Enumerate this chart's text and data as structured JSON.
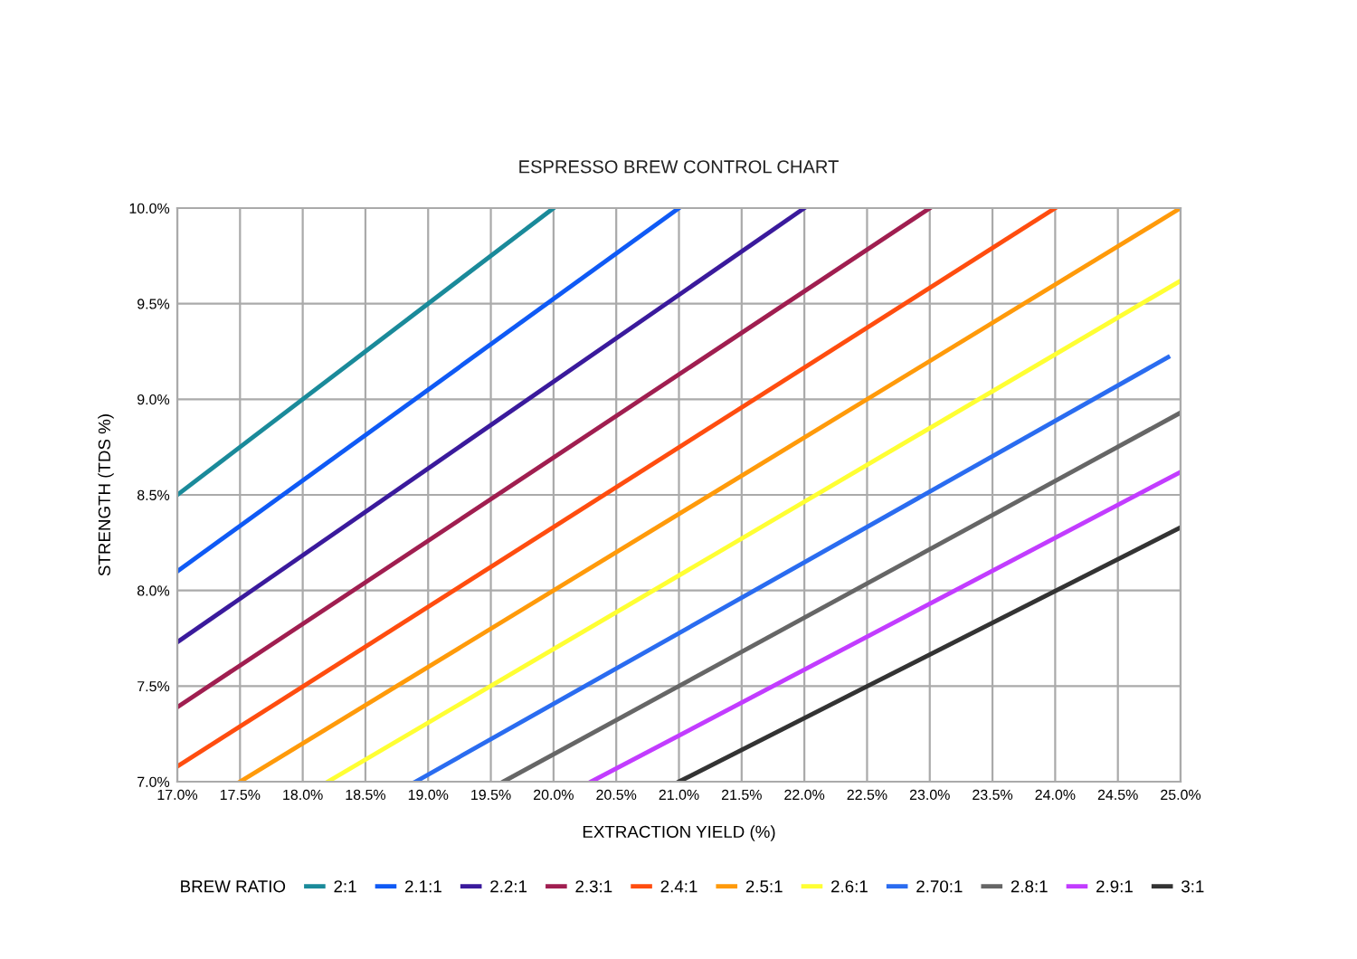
{
  "chart_data": {
    "type": "line",
    "title": "ESPRESSO BREW CONTROL CHART",
    "xlabel": "EXTRACTION YIELD (%)",
    "ylabel": "STRENGTH (TDS %)",
    "legend_title": "BREW RATIO",
    "legend": "bottom",
    "grid": true,
    "marker": "none",
    "line_style": "solid",
    "xlim": [
      17.0,
      25.0
    ],
    "ylim": [
      7.0,
      10.0
    ],
    "xticks": [
      {
        "value": 17.0,
        "label": "17.0%"
      },
      {
        "value": 17.5,
        "label": "17.5%"
      },
      {
        "value": 18.0,
        "label": "18.0%"
      },
      {
        "value": 18.5,
        "label": "18.5%"
      },
      {
        "value": 19.0,
        "label": "19.0%"
      },
      {
        "value": 19.5,
        "label": "19.5%"
      },
      {
        "value": 20.0,
        "label": "20.0%"
      },
      {
        "value": 20.5,
        "label": "20.5%"
      },
      {
        "value": 21.0,
        "label": "21.0%"
      },
      {
        "value": 21.5,
        "label": "21.5%"
      },
      {
        "value": 22.0,
        "label": "22.0%"
      },
      {
        "value": 22.5,
        "label": "22.5%"
      },
      {
        "value": 23.0,
        "label": "23.0%"
      },
      {
        "value": 23.5,
        "label": "23.5%"
      },
      {
        "value": 24.0,
        "label": "24.0%"
      },
      {
        "value": 24.5,
        "label": "24.5%"
      },
      {
        "value": 25.0,
        "label": "25.0%"
      }
    ],
    "yticks": [
      {
        "value": 7.0,
        "label": "7.0%"
      },
      {
        "value": 7.5,
        "label": "7.5%"
      },
      {
        "value": 8.0,
        "label": "8.0%"
      },
      {
        "value": 8.5,
        "label": "8.5%"
      },
      {
        "value": 9.0,
        "label": "9.0%"
      },
      {
        "value": 9.5,
        "label": "9.5%"
      },
      {
        "value": 10.0,
        "label": "10.0%"
      }
    ],
    "series": [
      {
        "name": "2:1",
        "color": "#1a8a9a",
        "x": [
          17.0,
          20.0
        ],
        "values": [
          8.5,
          10.0
        ]
      },
      {
        "name": "2.1:1",
        "color": "#0f5af5",
        "x": [
          17.0,
          21.0
        ],
        "values": [
          8.1,
          10.0
        ]
      },
      {
        "name": "2.2:1",
        "color": "#3a1a9c",
        "x": [
          17.0,
          22.0
        ],
        "values": [
          7.73,
          10.0
        ]
      },
      {
        "name": "2.3:1",
        "color": "#a01e50",
        "x": [
          17.0,
          23.0
        ],
        "values": [
          7.39,
          10.0
        ]
      },
      {
        "name": "2.4:1",
        "color": "#ff4d0f",
        "x": [
          17.0,
          24.0
        ],
        "values": [
          7.08,
          10.0
        ]
      },
      {
        "name": "2.5:1",
        "color": "#ff9a0a",
        "x": [
          17.5,
          25.0
        ],
        "values": [
          7.0,
          10.0
        ]
      },
      {
        "name": "2.6:1",
        "color": "#ffff33",
        "x": [
          18.2,
          25.0
        ],
        "values": [
          7.0,
          9.62
        ]
      },
      {
        "name": "2.70:1",
        "color": "#2a6cf0",
        "x": [
          18.9,
          24.9
        ],
        "values": [
          7.0,
          9.22
        ]
      },
      {
        "name": "2.8:1",
        "color": "#666666",
        "x": [
          19.6,
          25.0
        ],
        "values": [
          7.0,
          8.93
        ]
      },
      {
        "name": "2.9:1",
        "color": "#c23cff",
        "x": [
          20.3,
          25.0
        ],
        "values": [
          7.0,
          8.62
        ]
      },
      {
        "name": "3:1",
        "color": "#333333",
        "x": [
          21.0,
          25.0
        ],
        "values": [
          7.0,
          8.33
        ]
      }
    ]
  }
}
